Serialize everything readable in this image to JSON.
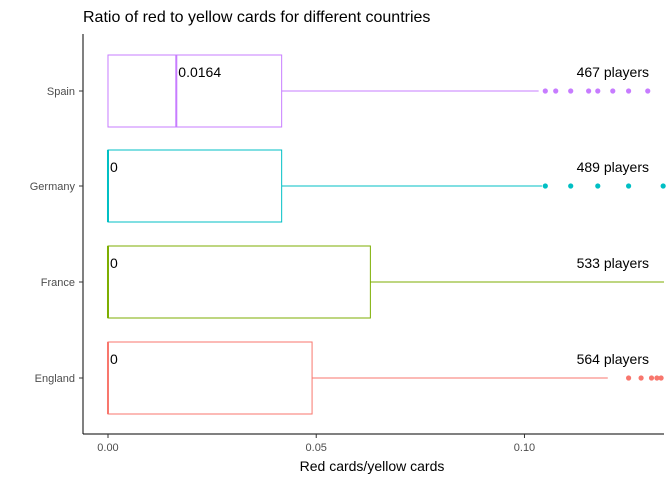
{
  "chart_data": {
    "type": "boxplot",
    "orientation": "horizontal",
    "title": "Ratio of red to yellow cards for different countries",
    "xlabel": "Red cards/yellow cards",
    "ylabel": "",
    "xlim": [
      -0.006,
      0.1335
    ],
    "x_ticks": [
      0,
      0.05,
      0.1
    ],
    "x_tick_labels": [
      "0.00",
      "0.05",
      "0.10"
    ],
    "grid": false,
    "legend": "none",
    "categories": [
      "England",
      "France",
      "Germany",
      "Spain"
    ],
    "series": [
      {
        "category": "England",
        "color": "#F8766D",
        "q1": 0,
        "median": 0,
        "q3": 0.049,
        "whisker_low": 0,
        "whisker_high": 0.12,
        "outliers": [
          0.125,
          0.128,
          0.1305,
          0.1318,
          0.1328
        ],
        "median_label": "0",
        "count_label": "564 players"
      },
      {
        "category": "France",
        "color": "#7CAE00",
        "q1": 0,
        "median": 0,
        "q3": 0.063,
        "whisker_low": 0,
        "whisker_high": 0.1335,
        "outliers": [],
        "median_label": "0",
        "count_label": "533 players"
      },
      {
        "category": "Germany",
        "color": "#00BFC4",
        "q1": 0,
        "median": 0,
        "q3": 0.0417,
        "whisker_low": 0,
        "whisker_high": 0.1042,
        "outliers": [
          0.105,
          0.1111,
          0.1176,
          0.125,
          0.1333
        ],
        "median_label": "0",
        "count_label": "489 players"
      },
      {
        "category": "Spain",
        "color": "#C77CFF",
        "q1": 0,
        "median": 0.0164,
        "q3": 0.0417,
        "whisker_low": 0,
        "whisker_high": 0.1034,
        "outliers": [
          0.105,
          0.1075,
          0.1111,
          0.1154,
          0.1176,
          0.1212,
          0.125,
          0.1296
        ],
        "median_label": "0.0164",
        "count_label": "467 players"
      }
    ]
  }
}
